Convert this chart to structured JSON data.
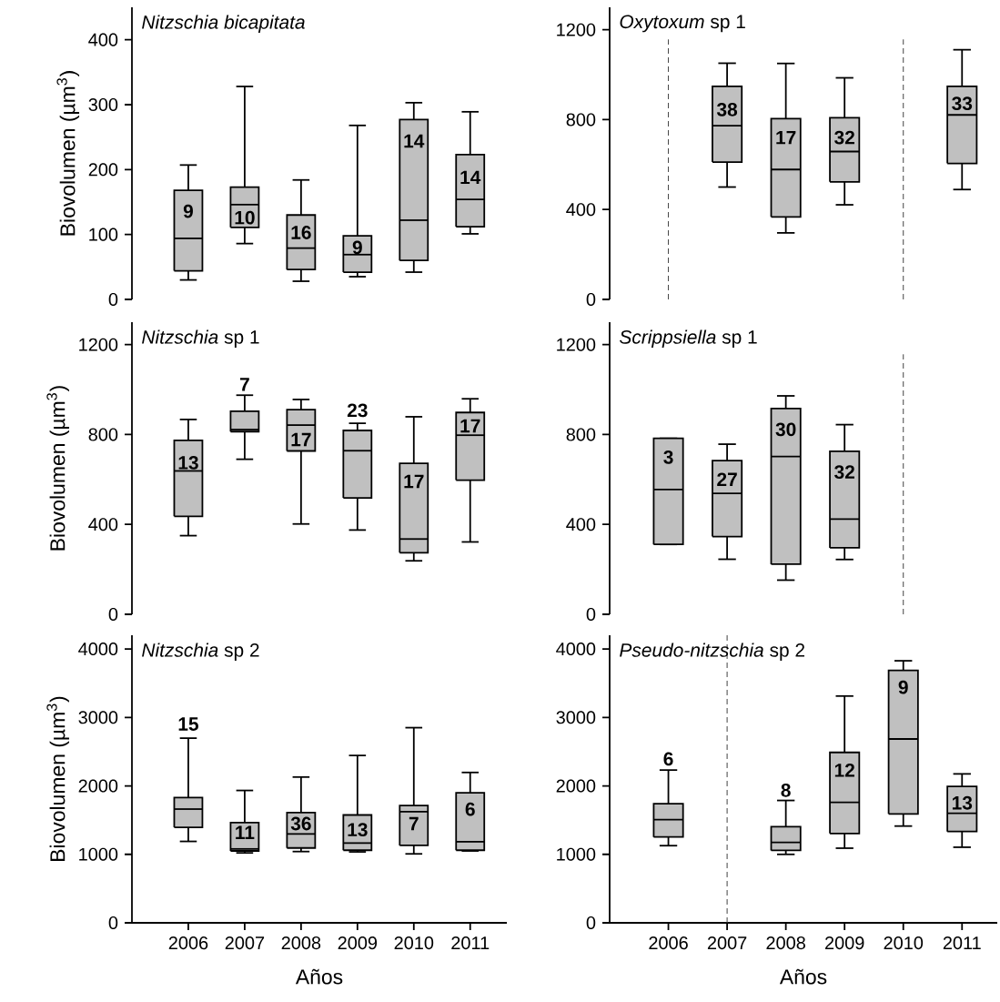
{
  "chart_data": [
    {
      "type": "box",
      "title": "*Nitzschia bicapitata*",
      "ylabel": "Biovolumen (µm$^{3}$)",
      "color": "#c0c0c0",
      "tick_labels": "y",
      "x": [
        2006,
        2007,
        2008,
        2009,
        2010,
        2011
      ],
      "ylim": [
        0,
        450
      ],
      "yticks": [
        0,
        100,
        200,
        300,
        400
      ],
      "boxes": [
        {
          "low": 30,
          "q1": 44,
          "median": 94,
          "q3": 168,
          "high": 207
        },
        {
          "low": 86,
          "q1": 111,
          "median": 146,
          "q3": 173,
          "high": 328
        },
        {
          "low": 28,
          "q1": 46,
          "median": 79,
          "q3": 130,
          "high": 184
        },
        {
          "low": 35,
          "q1": 42,
          "median": 69,
          "q3": 98,
          "high": 268
        },
        {
          "low": 42,
          "q1": 60,
          "median": 122,
          "q3": 277,
          "high": 303
        },
        {
          "low": 101,
          "q1": 112,
          "median": 154,
          "q3": 223,
          "high": 289
        }
      ],
      "annotations": [
        "9",
        "10",
        "16",
        "9",
        "14",
        "14"
      ]
    },
    {
      "type": "box",
      "title": "*Oxytoxum* sp 1",
      "color": "#c0c0c0",
      "tick_labels": "y",
      "x": [
        2007,
        2008,
        2009,
        2011
      ],
      "ylim": [
        0,
        1300
      ],
      "yticks": [
        0,
        400,
        800,
        1200
      ],
      "boxes": [
        {
          "low": 500,
          "q1": 611,
          "median": 773,
          "q3": 948,
          "high": 1051
        },
        {
          "low": 296,
          "q1": 367,
          "median": 578,
          "q3": 804,
          "high": 1050
        },
        {
          "low": 421,
          "q1": 523,
          "median": 658,
          "q3": 808,
          "high": 986
        },
        {
          "low": 489,
          "q1": 605,
          "median": 821,
          "q3": 948,
          "high": 1111
        }
      ],
      "annotations": [
        "38",
        "17",
        "32",
        "33"
      ]
    },
    {
      "type": "box",
      "title": "*Nitzschia* sp 1",
      "ylabel": "Biovolumen (µm$^{3}$)",
      "color": "#c0c0c0",
      "tick_labels": "y",
      "x": [
        2006,
        2007,
        2008,
        2009,
        2010,
        2011
      ],
      "ylim": [
        0,
        1300
      ],
      "yticks": [
        0,
        400,
        800,
        1200
      ],
      "boxes": [
        {
          "low": 350,
          "q1": 436,
          "median": 638,
          "q3": 774,
          "high": 867
        },
        {
          "low": 690,
          "q1": 813,
          "median": 822,
          "q3": 904,
          "high": 975
        },
        {
          "low": 402,
          "q1": 727,
          "median": 842,
          "q3": 911,
          "high": 956
        },
        {
          "low": 375,
          "q1": 518,
          "median": 728,
          "q3": 818,
          "high": 850
        },
        {
          "low": 238,
          "q1": 274,
          "median": 335,
          "q3": 672,
          "high": 879
        },
        {
          "low": 322,
          "q1": 597,
          "median": 797,
          "q3": 898,
          "high": 959
        }
      ],
      "annotations": [
        "13",
        "7",
        "17",
        "23",
        "17",
        "17"
      ]
    },
    {
      "type": "box",
      "title": "*Scrippsiella* sp 1",
      "color": "#c0c0c0",
      "tick_labels": "y",
      "x": [
        2006,
        2007,
        2008,
        2009
      ],
      "ylim": [
        0,
        1300
      ],
      "yticks": [
        0,
        400,
        800,
        1200
      ],
      "boxes": [
        {
          "low": 311,
          "q1": 311,
          "median": 555,
          "q3": 783,
          "high": 783
        },
        {
          "low": 245,
          "q1": 346,
          "median": 538,
          "q3": 684,
          "high": 757
        },
        {
          "low": 152,
          "q1": 223,
          "median": 702,
          "q3": 916,
          "high": 972
        },
        {
          "low": 244,
          "q1": 296,
          "median": 424,
          "q3": 725,
          "high": 844
        }
      ],
      "annotations": [
        "3",
        "27",
        "30",
        "32"
      ]
    },
    {
      "type": "box",
      "title": "*Nitzschia* sp 2",
      "ylabel": "Biovolumen (µm$^{3}$)",
      "xlabel": "Años",
      "color": "#c0c0c0",
      "x": [
        2006,
        2007,
        2008,
        2009,
        2010,
        2011
      ],
      "xlim": [
        2005,
        2011.65
      ],
      "xticks": [
        2006,
        2007,
        2008,
        2009,
        2010,
        2011
      ],
      "ylim": [
        0,
        4200
      ],
      "yticks": [
        0,
        1000,
        2000,
        3000,
        4000
      ],
      "boxes": [
        {
          "low": 1189,
          "q1": 1394,
          "median": 1661,
          "q3": 1828,
          "high": 2697
        },
        {
          "low": 1021,
          "q1": 1050,
          "median": 1079,
          "q3": 1465,
          "high": 1933
        },
        {
          "low": 1041,
          "q1": 1093,
          "median": 1298,
          "q3": 1609,
          "high": 2129
        },
        {
          "low": 1036,
          "q1": 1060,
          "median": 1165,
          "q3": 1575,
          "high": 2444
        },
        {
          "low": 1007,
          "q1": 1131,
          "median": 1623,
          "q3": 1714,
          "high": 2850
        },
        {
          "low": 1050,
          "q1": 1060,
          "median": 1184,
          "q3": 1900,
          "high": 2196
        }
      ],
      "annotations": [
        "15",
        "11",
        "36",
        "13",
        "7",
        "6"
      ]
    },
    {
      "type": "box",
      "title": "*Pseudo-nitzschia* sp 2",
      "xlabel": "Años",
      "color": "#c0c0c0",
      "x": [
        2006,
        2008,
        2009,
        2010,
        2011
      ],
      "xlim": [
        2005,
        2011.6
      ],
      "xticks": [
        2006,
        2007,
        2008,
        2009,
        2010,
        2011
      ],
      "ylim": [
        0,
        4200
      ],
      "yticks": [
        0,
        1000,
        2000,
        3000,
        4000
      ],
      "boxes": [
        {
          "low": 1127,
          "q1": 1254,
          "median": 1506,
          "q3": 1740,
          "high": 2231
        },
        {
          "low": 1000,
          "q1": 1057,
          "median": 1174,
          "q3": 1404,
          "high": 1787
        },
        {
          "low": 1090,
          "q1": 1305,
          "median": 1759,
          "q3": 2489,
          "high": 3312
        },
        {
          "low": 1413,
          "q1": 1591,
          "median": 2685,
          "q3": 3687,
          "high": 3827
        },
        {
          "low": 1104,
          "q1": 1333,
          "median": 1600,
          "q3": 1993,
          "high": 2175
        }
      ],
      "ref_lines": [
        {
          "axis": "x",
          "value": 2007,
          "line_style": "dashed",
          "color": "#404040"
        }
      ],
      "annotations": [
        "6",
        "8",
        "12",
        "9",
        "13"
      ]
    }
  ]
}
